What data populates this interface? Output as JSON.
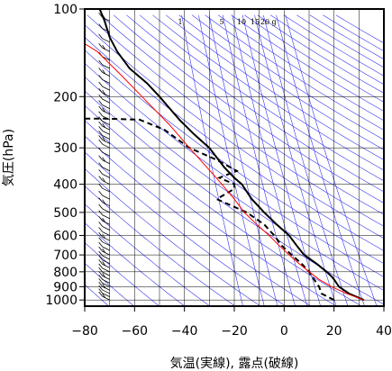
{
  "chart_data": {
    "type": "line",
    "subtype": "emagram",
    "xlabel": "気温(実線), 露点(破線)",
    "ylabel": "気圧(hPa)",
    "xlim": [
      -80,
      40
    ],
    "ylim": [
      1050,
      100
    ],
    "y_scale": "log",
    "grid": true,
    "x_ticks": [
      -80,
      -60,
      -40,
      -20,
      0,
      20,
      40
    ],
    "x_tick_labels": [
      "−80",
      "−60",
      "−40",
      "−20",
      "0",
      "20",
      "40"
    ],
    "y_ticks": [
      100,
      200,
      300,
      400,
      500,
      600,
      700,
      800,
      900,
      1000
    ],
    "y_tick_labels": [
      "100",
      "200",
      "300",
      "400",
      "500",
      "600",
      "700",
      "800",
      "900",
      "1000"
    ],
    "mixing_ratio_labels": [
      "1",
      "5",
      "10",
      "15",
      "20",
      "g"
    ],
    "colors": {
      "temperature": "#000000",
      "dewpoint": "#000000",
      "parcel": "#ff0000",
      "reference_lines": "#3333ee",
      "grid": "#000000"
    },
    "series": [
      {
        "style": "solid",
        "points": [
          [
            32,
            1000
          ],
          [
            26,
            950
          ],
          [
            22,
            900
          ],
          [
            20,
            850
          ],
          [
            19,
            830
          ],
          [
            17,
            800
          ],
          [
            13,
            750
          ],
          [
            8,
            700
          ],
          [
            5,
            650
          ],
          [
            2,
            600
          ],
          [
            -3,
            550
          ],
          [
            -8,
            500
          ],
          [
            -13,
            450
          ],
          [
            -17,
            400
          ],
          [
            -20,
            380
          ],
          [
            -24,
            350
          ],
          [
            -30,
            300
          ],
          [
            -36,
            270
          ],
          [
            -42,
            240
          ],
          [
            -50,
            200
          ],
          [
            -55,
            180
          ],
          [
            -62,
            160
          ],
          [
            -67,
            140
          ],
          [
            -70,
            125
          ],
          [
            -72,
            110
          ],
          [
            -74,
            100
          ]
        ]
      },
      {
        "style": "dashed",
        "points": [
          [
            20,
            1000
          ],
          [
            15,
            950
          ],
          [
            14,
            900
          ],
          [
            12,
            850
          ],
          [
            10,
            800
          ],
          [
            7,
            750
          ],
          [
            3,
            700
          ],
          [
            -1,
            650
          ],
          [
            -4,
            600
          ],
          [
            -8,
            550
          ],
          [
            -15,
            500
          ],
          [
            -27,
            450
          ],
          [
            -20,
            415
          ],
          [
            -20,
            400
          ],
          [
            -26,
            380
          ],
          [
            -19,
            360
          ],
          [
            -27,
            330
          ],
          [
            -38,
            300
          ],
          [
            -48,
            260
          ],
          [
            -58,
            240
          ],
          [
            -72,
            238
          ],
          [
            -80,
            238
          ]
        ]
      },
      {
        "style": "parcel",
        "points": [
          [
            32,
            1000
          ],
          [
            25,
            950
          ],
          [
            19,
            900
          ],
          [
            14,
            850
          ],
          [
            10,
            800
          ],
          [
            6,
            750
          ],
          [
            2,
            700
          ],
          [
            -2,
            650
          ],
          [
            -6,
            600
          ],
          [
            -11,
            550
          ],
          [
            -16,
            500
          ],
          [
            -20,
            450
          ],
          [
            -25,
            400
          ],
          [
            -31,
            350
          ],
          [
            -38,
            300
          ],
          [
            -46,
            250
          ],
          [
            -57,
            200
          ],
          [
            -65,
            170
          ],
          [
            -75,
            140
          ],
          [
            -81,
            130
          ]
        ]
      }
    ],
    "wind_barbs": {
      "x": -70,
      "pressures": [
        1000,
        975,
        950,
        925,
        900,
        875,
        850,
        825,
        800,
        775,
        750,
        725,
        700,
        675,
        650,
        625,
        600,
        575,
        550,
        525,
        500,
        475,
        450,
        425,
        400,
        380,
        360,
        340,
        320,
        300,
        290,
        280,
        270,
        260,
        250,
        240,
        230,
        220,
        210,
        200,
        190,
        180,
        170,
        160,
        150,
        140,
        130,
        120,
        110,
        100
      ]
    }
  }
}
